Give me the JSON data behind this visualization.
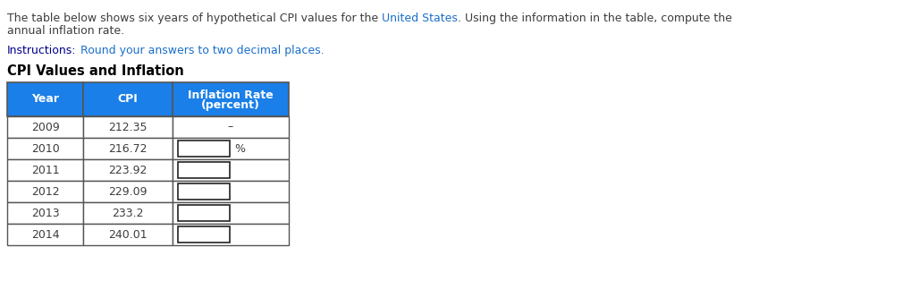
{
  "title_line1_parts": [
    [
      "The table below shows six years of hypothetical CPI values for the ",
      "#3d3d3d"
    ],
    [
      "United States",
      "#1a6fca"
    ],
    [
      ". Using the information in the table, compute the",
      "#3d3d3d"
    ]
  ],
  "title_line2_parts": [
    [
      "annual inflation rate.",
      "#3d3d3d"
    ]
  ],
  "instructions_bold": "Instructions:",
  "instructions_bold_color": "#00008B",
  "instructions_rest": " Round your answers to two decimal places.",
  "instructions_rest_color": "#1a6fca",
  "table_title": "CPI Values and Inflation",
  "table_title_color": "#000000",
  "header_bg": "#1a7fe8",
  "header_text_color": "#FFFFFF",
  "col_headers_line1": [
    "Year",
    "CPI",
    "Inflation Rate"
  ],
  "col_headers_line2": [
    "",
    "",
    "(percent)"
  ],
  "years": [
    "2009",
    "2010",
    "2011",
    "2012",
    "2013",
    "2014"
  ],
  "cpi_values": [
    "212.35",
    "216.72",
    "223.92",
    "229.09",
    "233.2",
    "240.01"
  ],
  "inflation_first": "–",
  "row_bg_color": "#FFFFFF",
  "border_color": "#555555",
  "cell_text_color": "#3d3d3d",
  "input_box_border": "#222222",
  "fig_width": 10.2,
  "fig_height": 3.14,
  "fig_bg": "#FFFFFF",
  "font_family": "DejaVu Sans",
  "text_fontsize": 9.0,
  "table_title_fontsize": 10.5,
  "cell_fontsize": 9.0
}
